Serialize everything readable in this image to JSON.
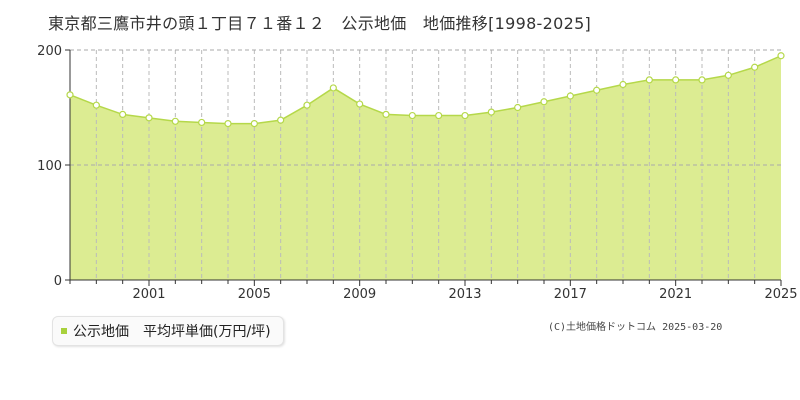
{
  "title": "東京都三鷹市井の頭１丁目７１番１２　公示地価　地価推移[1998-2025]",
  "legend": {
    "label": "公示地価　平均坪単価(万円/坪)"
  },
  "copyright": "(C)土地価格ドットコム 2025-03-20",
  "colors": {
    "fill": "#dcec92",
    "line": "#b5d84a",
    "marker_fill": "#ffffff",
    "marker_stroke": "#b5d84a",
    "legend_swatch": "#a8d13c"
  },
  "chart_data": {
    "type": "area",
    "title": "",
    "xlabel": "",
    "ylabel": "",
    "x": [
      1998,
      1999,
      2000,
      2001,
      2002,
      2003,
      2004,
      2005,
      2006,
      2007,
      2008,
      2009,
      2010,
      2011,
      2012,
      2013,
      2014,
      2015,
      2016,
      2017,
      2018,
      2019,
      2020,
      2021,
      2022,
      2023,
      2024,
      2025
    ],
    "series": [
      {
        "name": "公示地価　平均坪単価(万円/坪)",
        "values": [
          161,
          152,
          144,
          141,
          138,
          137,
          136,
          136,
          139,
          152,
          167,
          153,
          144,
          143,
          143,
          143,
          146,
          150,
          155,
          160,
          165,
          170,
          174,
          174,
          174,
          178,
          185,
          195
        ]
      }
    ],
    "xticks": [
      "2001",
      "2005",
      "2009",
      "2013",
      "2017",
      "2021",
      "2025"
    ],
    "yticks": [
      "0",
      "100",
      "200"
    ],
    "xlim": [
      1998,
      2025
    ],
    "ylim": [
      0,
      200
    ],
    "grid": true,
    "legend_position": "bottom-left"
  }
}
